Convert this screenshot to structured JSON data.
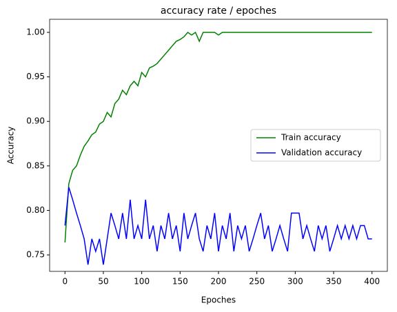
{
  "chart_data": {
    "type": "line",
    "title": "accuracy rate / epoches",
    "xlabel": "Epoches",
    "ylabel": "Accuracy",
    "x": [
      0,
      5,
      10,
      15,
      20,
      25,
      30,
      35,
      40,
      45,
      50,
      55,
      60,
      65,
      70,
      75,
      80,
      85,
      90,
      95,
      100,
      105,
      110,
      115,
      120,
      125,
      130,
      135,
      140,
      145,
      150,
      155,
      160,
      165,
      170,
      175,
      180,
      185,
      190,
      195,
      200,
      205,
      210,
      215,
      220,
      225,
      230,
      235,
      240,
      245,
      250,
      255,
      260,
      265,
      270,
      275,
      280,
      285,
      290,
      295,
      300,
      305,
      310,
      315,
      320,
      325,
      330,
      335,
      340,
      345,
      350,
      355,
      360,
      365,
      370,
      375,
      380,
      385,
      390,
      395,
      400
    ],
    "series": [
      {
        "name": "Train accuracy",
        "color": "#008000",
        "values": [
          0.764,
          0.83,
          0.845,
          0.85,
          0.862,
          0.872,
          0.878,
          0.885,
          0.888,
          0.897,
          0.9,
          0.91,
          0.905,
          0.92,
          0.925,
          0.935,
          0.93,
          0.94,
          0.945,
          0.94,
          0.955,
          0.95,
          0.96,
          0.962,
          0.965,
          0.97,
          0.975,
          0.98,
          0.985,
          0.99,
          0.992,
          0.995,
          1.0,
          0.997,
          1.0,
          0.99,
          1.0,
          1.0,
          1.0,
          1.0,
          0.997,
          1.0,
          1.0,
          1.0,
          1.0,
          1.0,
          1.0,
          1.0,
          1.0,
          1.0,
          1.0,
          1.0,
          1.0,
          1.0,
          1.0,
          1.0,
          1.0,
          1.0,
          1.0,
          1.0,
          1.0,
          1.0,
          1.0,
          1.0,
          1.0,
          1.0,
          1.0,
          1.0,
          1.0,
          1.0,
          1.0,
          1.0,
          1.0,
          1.0,
          1.0,
          1.0,
          1.0,
          1.0,
          1.0,
          1.0,
          1.0
        ]
      },
      {
        "name": "Validation accuracy",
        "color": "#0000ff",
        "values": [
          0.783,
          0.826,
          0.812,
          0.797,
          0.783,
          0.768,
          0.739,
          0.768,
          0.754,
          0.768,
          0.739,
          0.768,
          0.797,
          0.783,
          0.768,
          0.797,
          0.768,
          0.812,
          0.768,
          0.783,
          0.768,
          0.812,
          0.768,
          0.783,
          0.754,
          0.783,
          0.768,
          0.797,
          0.768,
          0.783,
          0.754,
          0.797,
          0.768,
          0.783,
          0.797,
          0.768,
          0.754,
          0.783,
          0.768,
          0.797,
          0.754,
          0.783,
          0.768,
          0.797,
          0.754,
          0.783,
          0.768,
          0.783,
          0.754,
          0.768,
          0.783,
          0.797,
          0.768,
          0.783,
          0.754,
          0.768,
          0.783,
          0.768,
          0.754,
          0.797,
          0.797,
          0.797,
          0.768,
          0.783,
          0.768,
          0.754,
          0.783,
          0.768,
          0.783,
          0.754,
          0.768,
          0.783,
          0.768,
          0.783,
          0.768,
          0.783,
          0.768,
          0.783,
          0.783,
          0.768,
          0.768
        ]
      }
    ],
    "xlim": [
      -20,
      420
    ],
    "ylim": [
      0.7315,
      1.0147
    ],
    "xticks": [
      0,
      50,
      100,
      150,
      200,
      250,
      300,
      350,
      400
    ],
    "yticks": [
      0.75,
      {
        "value": 0.8,
        "label": "0.80"
      },
      0.85,
      {
        "value": 0.9,
        "label": "0.90"
      },
      0.95,
      {
        "value": 1.0,
        "label": "1.00"
      }
    ],
    "legend": "center right"
  }
}
